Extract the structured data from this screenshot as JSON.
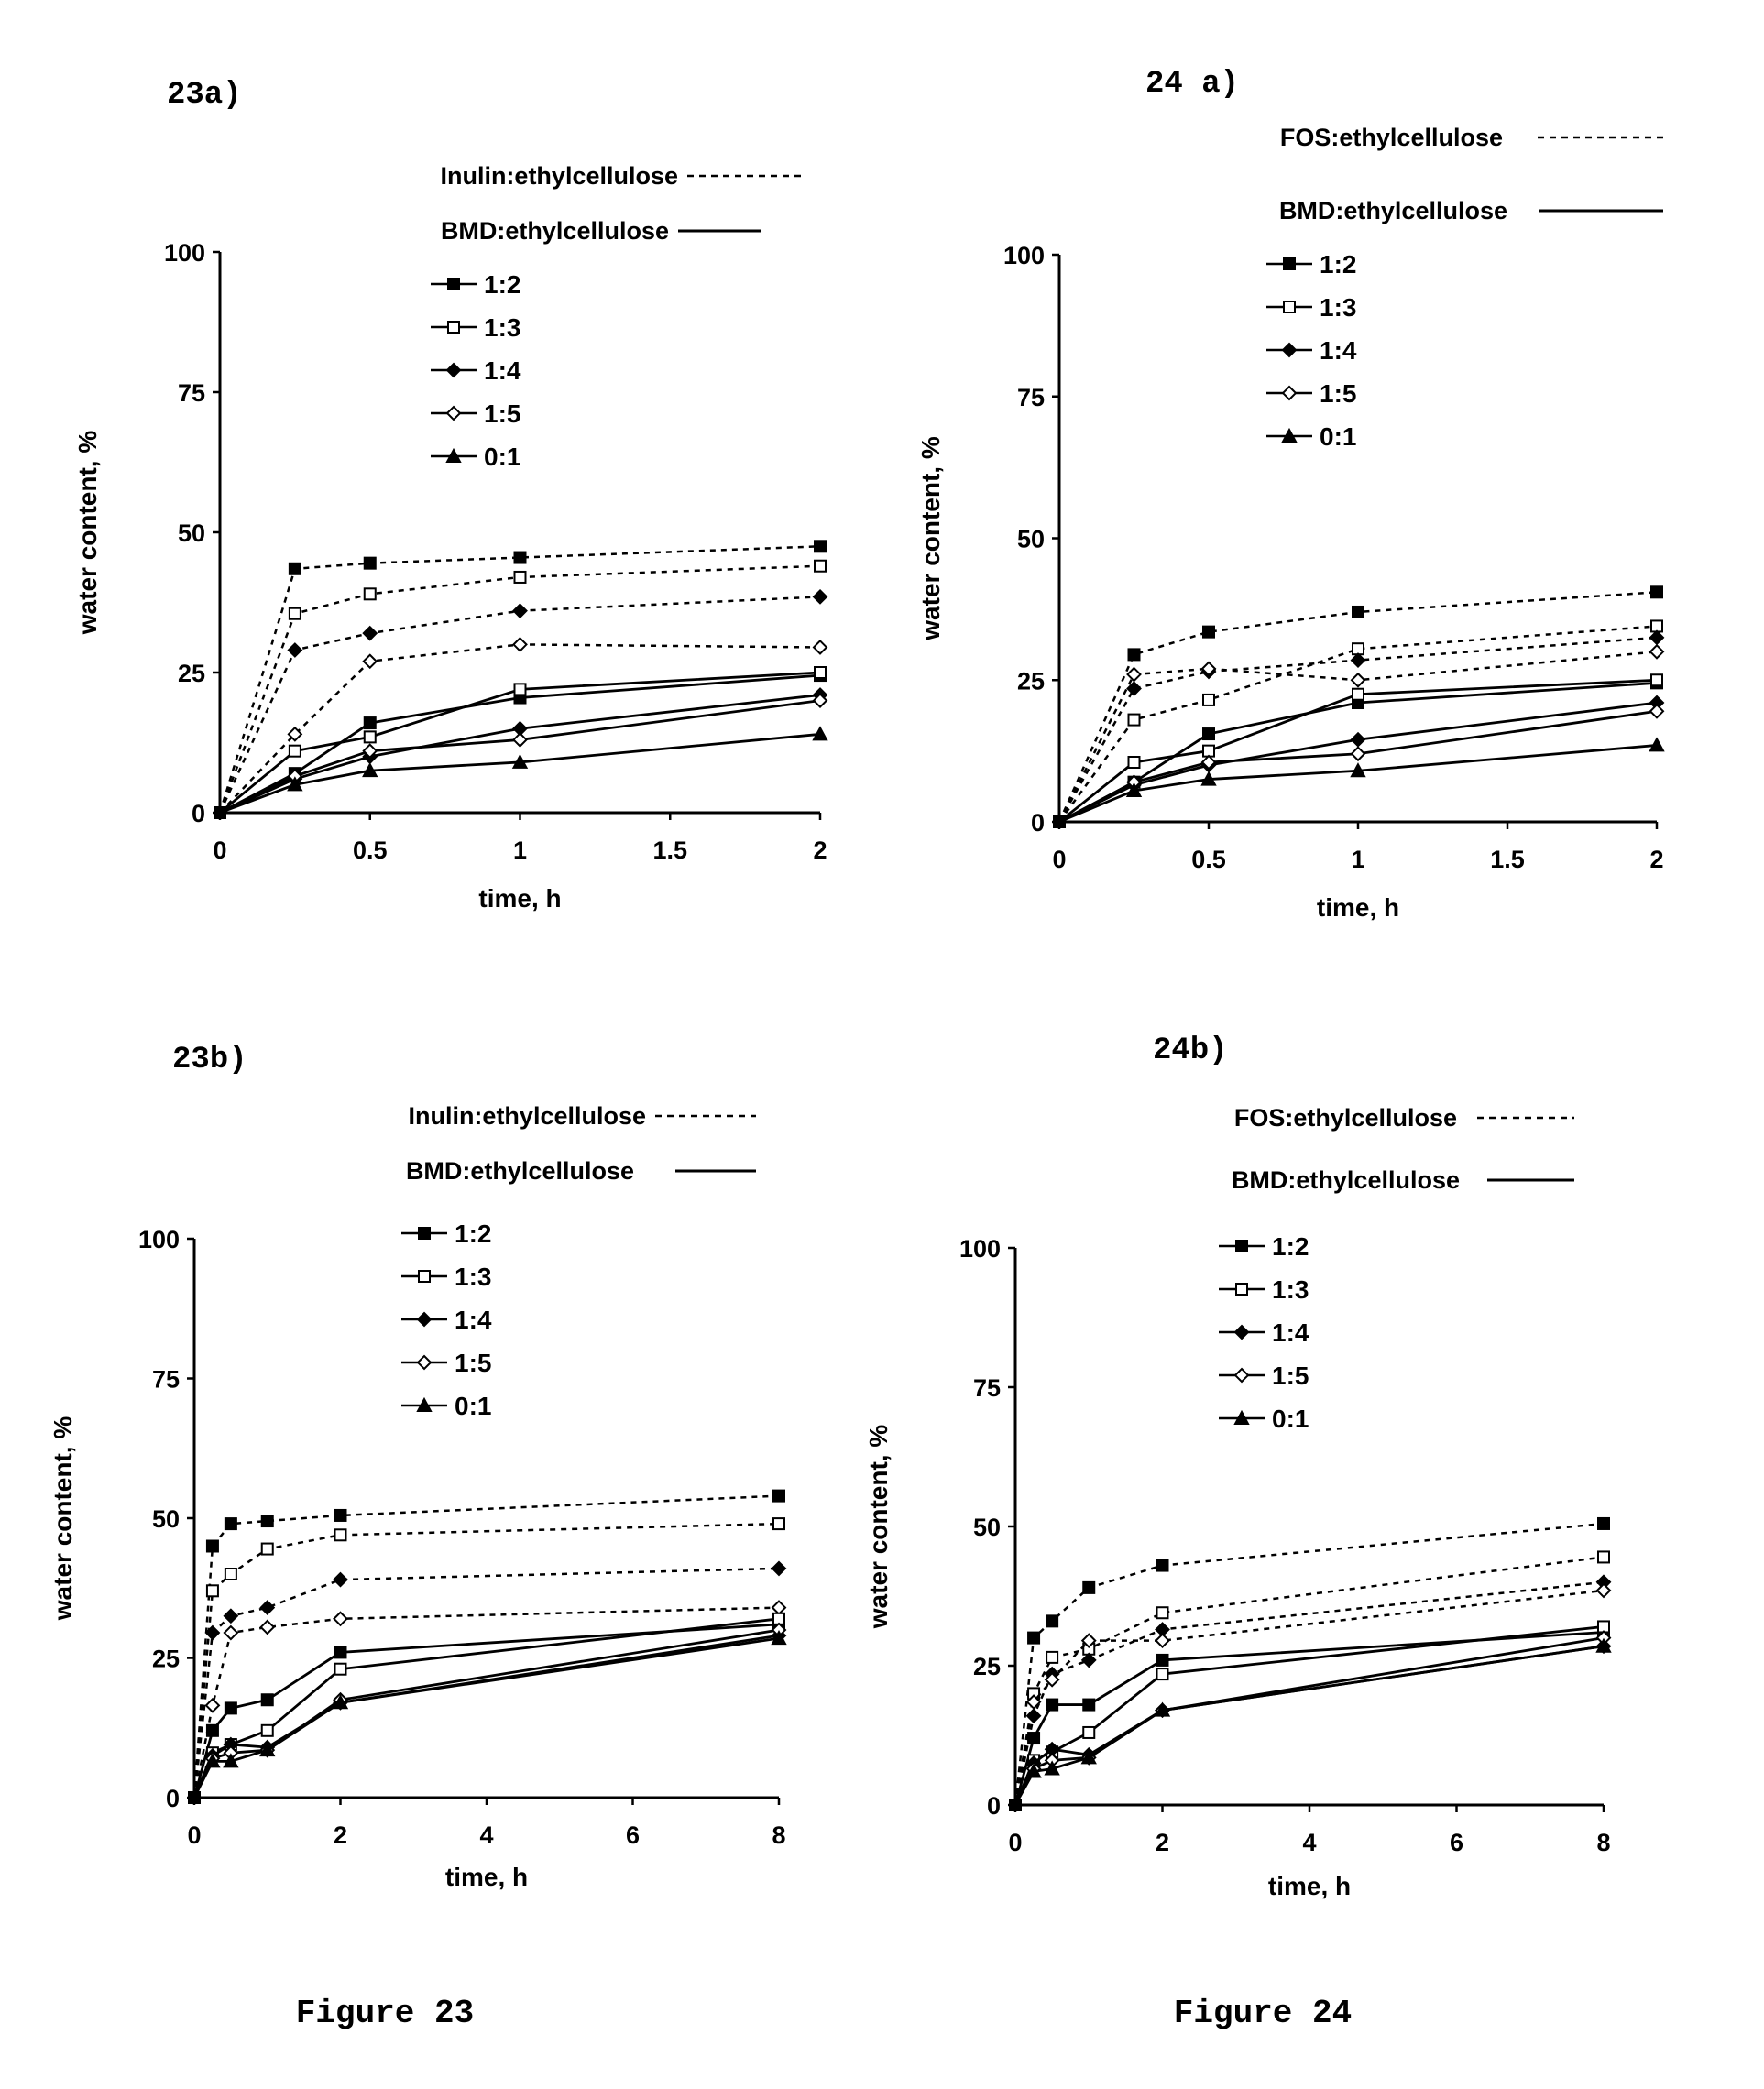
{
  "colors": {
    "ink": "#000000",
    "background": "#ffffff"
  },
  "figure_captions": [
    "Figure 23",
    "Figure 24"
  ],
  "chart_data": [
    {
      "panel": "23a)",
      "type": "line",
      "legend_lines": {
        "dashed": "Inulin:ethylcellulose",
        "solid": "BMD:ethylcellulose"
      },
      "legend_markers": [
        "1:2",
        "1:3",
        "1:4",
        "1:5",
        "0:1"
      ],
      "xlabel": "time, h",
      "ylabel": "water content, %",
      "xlim": [
        0,
        2
      ],
      "ylim": [
        0,
        100
      ],
      "xticks": [
        "0",
        "0.5",
        "1",
        "1.5",
        "2"
      ],
      "yticks": [
        "0",
        "25",
        "50",
        "75",
        "100"
      ],
      "x": [
        0,
        0.25,
        0.5,
        1,
        2
      ],
      "series": [
        {
          "name": "Inulin:ethylcellulose 1:2",
          "style": "dashed",
          "marker": "square-filled",
          "values": [
            0,
            43.5,
            44.5,
            45.5,
            47.5
          ]
        },
        {
          "name": "Inulin:ethylcellulose 1:3",
          "style": "dashed",
          "marker": "square-open",
          "values": [
            0,
            35.5,
            39,
            42,
            44
          ]
        },
        {
          "name": "Inulin:ethylcellulose 1:4",
          "style": "dashed",
          "marker": "diamond-filled",
          "values": [
            0,
            29,
            32,
            36,
            38.5
          ]
        },
        {
          "name": "Inulin:ethylcellulose 1:5",
          "style": "dashed",
          "marker": "diamond-open",
          "values": [
            0,
            14,
            27,
            30,
            29.5
          ]
        },
        {
          "name": "BMD:ethylcellulose 1:2",
          "style": "solid",
          "marker": "square-filled",
          "values": [
            0,
            7,
            16,
            20.5,
            24.5
          ]
        },
        {
          "name": "BMD:ethylcellulose 1:3",
          "style": "solid",
          "marker": "square-open",
          "values": [
            0,
            11,
            13.5,
            22,
            25
          ]
        },
        {
          "name": "BMD:ethylcellulose 1:4",
          "style": "solid",
          "marker": "diamond-filled",
          "values": [
            0,
            6,
            10,
            15,
            21
          ]
        },
        {
          "name": "BMD:ethylcellulose 1:5",
          "style": "solid",
          "marker": "diamond-open",
          "values": [
            0,
            6.5,
            11,
            13,
            20
          ]
        },
        {
          "name": "0:1",
          "style": "solid",
          "marker": "triangle-filled",
          "values": [
            0,
            5,
            7.5,
            9,
            14
          ]
        }
      ]
    },
    {
      "panel": "24 a)",
      "type": "line",
      "legend_lines": {
        "dashed": "FOS:ethylcellulose",
        "solid": "BMD:ethylcellulose"
      },
      "legend_markers": [
        "1:2",
        "1:3",
        "1:4",
        "1:5",
        "0:1"
      ],
      "xlabel": "time, h",
      "ylabel": "water content, %",
      "xlim": [
        0,
        2
      ],
      "ylim": [
        0,
        100
      ],
      "xticks": [
        "0",
        "0.5",
        "1",
        "1.5",
        "2"
      ],
      "yticks": [
        "0",
        "25",
        "50",
        "75",
        "100"
      ],
      "x": [
        0,
        0.25,
        0.5,
        1,
        2
      ],
      "series": [
        {
          "name": "FOS:ethylcellulose 1:2",
          "style": "dashed",
          "marker": "square-filled",
          "values": [
            0,
            29.5,
            33.5,
            37,
            40.5
          ]
        },
        {
          "name": "FOS:ethylcellulose 1:3",
          "style": "dashed",
          "marker": "square-open",
          "values": [
            0,
            18,
            21.5,
            30.5,
            34.5
          ]
        },
        {
          "name": "FOS:ethylcellulose 1:4",
          "style": "dashed",
          "marker": "diamond-filled",
          "values": [
            0,
            23.5,
            26.5,
            28.5,
            32.5
          ]
        },
        {
          "name": "FOS:ethylcellulose 1:5",
          "style": "dashed",
          "marker": "diamond-open",
          "values": [
            0,
            26,
            27,
            25,
            30
          ]
        },
        {
          "name": "BMD:ethylcellulose 1:2",
          "style": "solid",
          "marker": "square-filled",
          "values": [
            0,
            7,
            15.5,
            21,
            24.5
          ]
        },
        {
          "name": "BMD:ethylcellulose 1:3",
          "style": "solid",
          "marker": "square-open",
          "values": [
            0,
            10.5,
            12.5,
            22.5,
            25
          ]
        },
        {
          "name": "BMD:ethylcellulose 1:4",
          "style": "solid",
          "marker": "diamond-filled",
          "values": [
            0,
            6.5,
            10,
            14.5,
            21
          ]
        },
        {
          "name": "BMD:ethylcellulose 1:5",
          "style": "solid",
          "marker": "diamond-open",
          "values": [
            0,
            7,
            10.5,
            12,
            19.5
          ]
        },
        {
          "name": "0:1",
          "style": "solid",
          "marker": "triangle-filled",
          "values": [
            0,
            5.5,
            7.5,
            9,
            13.5
          ]
        }
      ]
    },
    {
      "panel": "23b)",
      "type": "line",
      "legend_lines": {
        "dashed": "Inulin:ethylcellulose",
        "solid": "BMD:ethylcellulose"
      },
      "legend_markers": [
        "1:2",
        "1:3",
        "1:4",
        "1:5",
        "0:1"
      ],
      "xlabel": "time, h",
      "ylabel": "water content, %",
      "xlim": [
        0,
        8
      ],
      "ylim": [
        0,
        100
      ],
      "xticks": [
        "0",
        "2",
        "4",
        "6",
        "8"
      ],
      "yticks": [
        "0",
        "25",
        "50",
        "75",
        "100"
      ],
      "x": [
        0,
        0.25,
        0.5,
        1,
        2,
        8
      ],
      "series": [
        {
          "name": "Inulin:ethylcellulose 1:2",
          "style": "dashed",
          "marker": "square-filled",
          "values": [
            0,
            45,
            49,
            49.5,
            50.5,
            54
          ]
        },
        {
          "name": "Inulin:ethylcellulose 1:3",
          "style": "dashed",
          "marker": "square-open",
          "values": [
            0,
            37,
            40,
            44.5,
            47,
            49
          ]
        },
        {
          "name": "Inulin:ethylcellulose 1:4",
          "style": "dashed",
          "marker": "diamond-filled",
          "values": [
            0,
            29.5,
            32.5,
            34,
            39,
            41
          ]
        },
        {
          "name": "Inulin:ethylcellulose 1:5",
          "style": "dashed",
          "marker": "diamond-open",
          "values": [
            0,
            16.5,
            29.5,
            30.5,
            32,
            34
          ]
        },
        {
          "name": "BMD:ethylcellulose 1:2",
          "style": "solid",
          "marker": "square-filled",
          "values": [
            0,
            12,
            16,
            17.5,
            26,
            31
          ]
        },
        {
          "name": "BMD:ethylcellulose 1:3",
          "style": "solid",
          "marker": "square-open",
          "values": [
            0,
            8,
            9.5,
            12,
            23,
            32
          ]
        },
        {
          "name": "BMD:ethylcellulose 1:4",
          "style": "solid",
          "marker": "diamond-filled",
          "values": [
            0,
            7.5,
            9.5,
            9,
            17,
            29
          ]
        },
        {
          "name": "BMD:ethylcellulose 1:5",
          "style": "solid",
          "marker": "diamond-open",
          "values": [
            0,
            7,
            8,
            8.5,
            17.5,
            30
          ]
        },
        {
          "name": "0:1",
          "style": "solid",
          "marker": "triangle-filled",
          "values": [
            0,
            6.5,
            6.5,
            8.5,
            17,
            28.5
          ]
        }
      ]
    },
    {
      "panel": "24b)",
      "type": "line",
      "legend_lines": {
        "dashed": "FOS:ethylcellulose",
        "solid": "BMD:ethylcellulose"
      },
      "legend_markers": [
        "1:2",
        "1:3",
        "1:4",
        "1:5",
        "0:1"
      ],
      "xlabel": "time, h",
      "ylabel": "water content, %",
      "xlim": [
        0,
        8
      ],
      "ylim": [
        0,
        100
      ],
      "xticks": [
        "0",
        "2",
        "4",
        "6",
        "8"
      ],
      "yticks": [
        "0",
        "25",
        "50",
        "75",
        "100"
      ],
      "x": [
        0,
        0.25,
        0.5,
        1,
        2,
        8
      ],
      "series": [
        {
          "name": "FOS:ethylcellulose 1:2",
          "style": "dashed",
          "marker": "square-filled",
          "values": [
            0,
            30,
            33,
            39,
            43,
            50.5
          ]
        },
        {
          "name": "FOS:ethylcellulose 1:3",
          "style": "dashed",
          "marker": "square-open",
          "values": [
            0,
            20,
            26.5,
            28,
            34.5,
            44.5
          ]
        },
        {
          "name": "FOS:ethylcellulose 1:4",
          "style": "dashed",
          "marker": "diamond-filled",
          "values": [
            0,
            16,
            23.5,
            26,
            31.5,
            40
          ]
        },
        {
          "name": "FOS:ethylcellulose 1:5",
          "style": "dashed",
          "marker": "diamond-open",
          "values": [
            0,
            18.5,
            22.5,
            29.5,
            29.5,
            38.5
          ]
        },
        {
          "name": "BMD:ethylcellulose 1:2",
          "style": "solid",
          "marker": "square-filled",
          "values": [
            0,
            12,
            18,
            18,
            26,
            31
          ]
        },
        {
          "name": "BMD:ethylcellulose 1:3",
          "style": "solid",
          "marker": "square-open",
          "values": [
            0,
            8,
            9.5,
            13,
            23.5,
            32
          ]
        },
        {
          "name": "BMD:ethylcellulose 1:4",
          "style": "solid",
          "marker": "diamond-filled",
          "values": [
            0,
            7.5,
            10,
            9,
            17,
            28.5
          ]
        },
        {
          "name": "BMD:ethylcellulose 1:5",
          "style": "solid",
          "marker": "diamond-open",
          "values": [
            0,
            6.5,
            8,
            8.5,
            17,
            30
          ]
        },
        {
          "name": "0:1",
          "style": "solid",
          "marker": "triangle-filled",
          "values": [
            0,
            6,
            6.5,
            8.5,
            17,
            28.5
          ]
        }
      ]
    }
  ]
}
